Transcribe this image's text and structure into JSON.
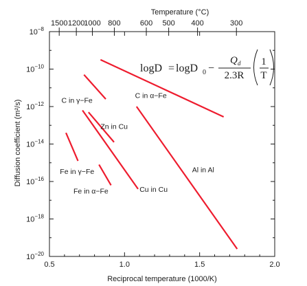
{
  "chart_data": {
    "type": "line",
    "title": "",
    "xlabel": "Reciprocal temperature (1000/K)",
    "ylabel": "Diffusion coefficient (m²/s)",
    "top_axis_label": "Temperature (°C)",
    "xlim": [
      0.5,
      2.0
    ],
    "ylim_log10": [
      -20,
      -8
    ],
    "y_scale": "log",
    "grid": false,
    "line_color": "#ee1c2e",
    "x_ticks": [
      "0.5",
      "1.0",
      "1.5",
      "2.0"
    ],
    "y_tick_base": "10",
    "y_tick_exponents": [
      "−8",
      "−10",
      "−12",
      "−14",
      "−16",
      "−18",
      "−20"
    ],
    "top_ticks": [
      {
        "label": "1500",
        "x": 0.565
      },
      {
        "label": "1200",
        "x": 0.679
      },
      {
        "label": "1000",
        "x": 0.786
      },
      {
        "label": "800",
        "x": 0.932
      },
      {
        "label": "600",
        "x": 1.145
      },
      {
        "label": "500",
        "x": 1.294
      },
      {
        "label": "400",
        "x": 1.486
      },
      {
        "label": "300",
        "x": 1.745
      }
    ],
    "formula": {
      "lhs": "logD",
      "eq": "=",
      "rhs_first": "logD",
      "rhs_first_sub": "0",
      "minus": "−",
      "frac_num": "Q",
      "frac_num_sub": "d",
      "frac_den": "2.3R",
      "paren_num": "1",
      "paren_den": "T"
    },
    "series": [
      {
        "name": "C in α−Fe",
        "x": [
          0.84,
          1.66
        ],
        "y": [
          -9.5,
          -12.55
        ]
      },
      {
        "name": "C in γ−Fe",
        "x": [
          0.73,
          0.875
        ],
        "y": [
          -10.3,
          -11.6
        ]
      },
      {
        "name": "Zn in Cu",
        "x": [
          0.76,
          0.93
        ],
        "y": [
          -12.3,
          -13.9
        ]
      },
      {
        "name": "Cu in Cu",
        "x": [
          0.72,
          1.09
        ],
        "y": [
          -12.2,
          -16.4
        ]
      },
      {
        "name": "Al in Al",
        "x": [
          1.08,
          1.75
        ],
        "y": [
          -12.0,
          -19.6
        ]
      },
      {
        "name": "Fe in γ−Fe",
        "x": [
          0.61,
          0.69
        ],
        "y": [
          -13.4,
          -14.9
        ]
      },
      {
        "name": "Fe in α−Fe",
        "x": [
          0.83,
          0.91
        ],
        "y": [
          -15.1,
          -16.2
        ]
      }
    ]
  }
}
